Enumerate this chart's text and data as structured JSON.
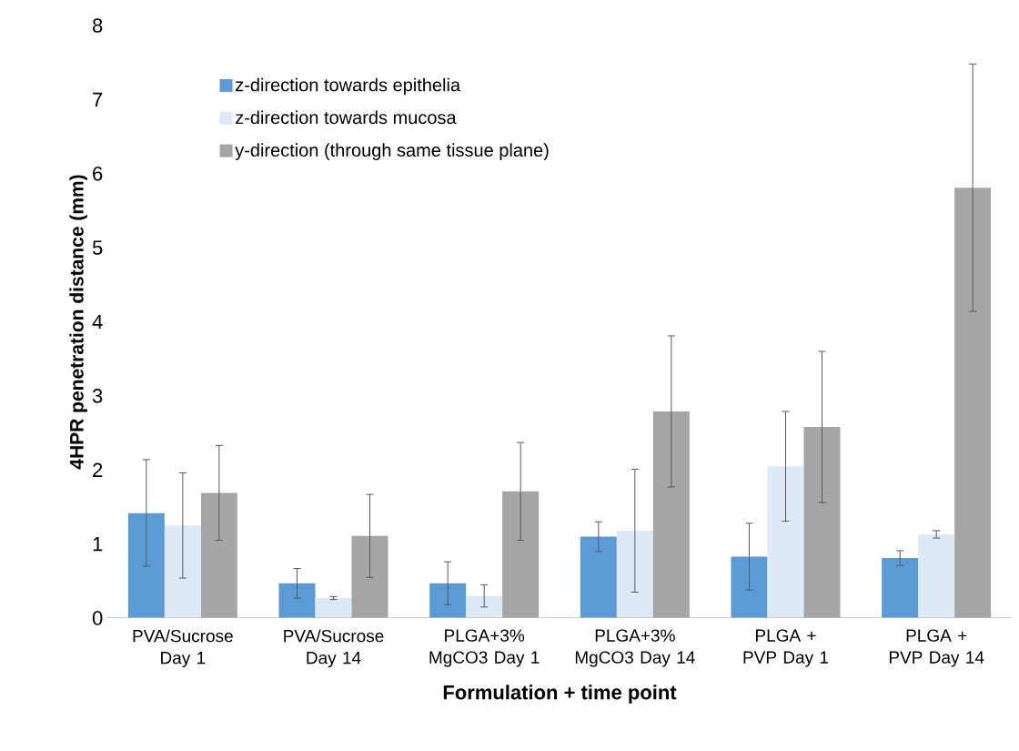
{
  "chart_data": {
    "type": "bar",
    "xlabel": "Formulation + time point",
    "ylabel": "4HPR penetration distance (mm)",
    "categories": [
      "PVA/Sucrose Day 1",
      "PVA/Sucrose Day 14",
      "PLGA+3% MgCO3 Day 1",
      "PLGA+3% MgCO3 Day 14",
      "PLGA + PVP Day 1",
      "PLGA + PVP Day 14"
    ],
    "series": [
      {
        "name": "z-direction towards epithelia",
        "color": "#5b9bd5",
        "values": [
          1.42,
          0.47,
          0.47,
          1.1,
          0.83,
          0.81
        ],
        "errors": [
          0.72,
          0.2,
          0.29,
          0.2,
          0.45,
          0.1
        ]
      },
      {
        "name": "z-direction towards mucosa",
        "color": "#dde9f5",
        "values": [
          1.25,
          0.27,
          0.3,
          1.18,
          2.05,
          1.13
        ],
        "errors": [
          0.71,
          0.02,
          0.15,
          0.83,
          0.74,
          0.05
        ]
      },
      {
        "name": "y-direction (through same tissue plane)",
        "color": "#a5a5a5",
        "values": [
          1.69,
          1.11,
          1.71,
          2.79,
          2.58,
          5.81
        ],
        "errors": [
          0.64,
          0.56,
          0.66,
          1.02,
          1.02,
          1.67
        ]
      }
    ],
    "ylim": [
      0,
      8
    ],
    "yticks": [
      0,
      1,
      2,
      3,
      4,
      5,
      6,
      7,
      8
    ],
    "legend": "top left"
  }
}
